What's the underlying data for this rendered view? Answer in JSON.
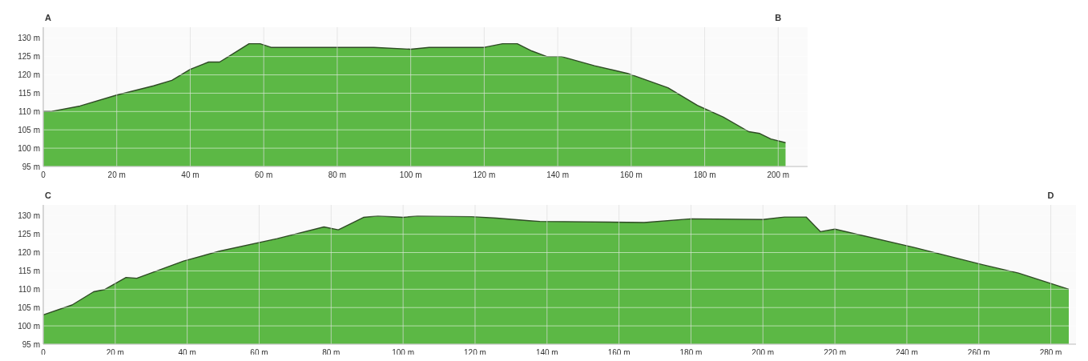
{
  "chart_data": [
    {
      "type": "area",
      "x": [
        0,
        2,
        10,
        20,
        30,
        35,
        40,
        45,
        48,
        52,
        56,
        59,
        62,
        70,
        80,
        90,
        100,
        105,
        120,
        125,
        129,
        133,
        137,
        141,
        150,
        159,
        170,
        178,
        185,
        192,
        195,
        198,
        202
      ],
      "series": [
        {
          "color": "#5cb845",
          "values": [
            110,
            110,
            111.5,
            114.5,
            117,
            118.5,
            121.5,
            123.5,
            123.5,
            126,
            128.5,
            128.5,
            127.5,
            127.5,
            127.5,
            127.5,
            127,
            127.5,
            127.5,
            128.5,
            128.5,
            126.5,
            125,
            125,
            122.5,
            120.4,
            116.5,
            111.7,
            108.5,
            104.5,
            104,
            102.5,
            101.5
          ]
        }
      ],
      "xlim": [
        0,
        208
      ],
      "ylim": [
        95,
        133
      ],
      "xticks": [
        0,
        {
          "value": 20,
          "label": "20 m"
        },
        {
          "value": 40,
          "label": "40 m"
        },
        {
          "value": 60,
          "label": "60 m"
        },
        {
          "value": 80,
          "label": "80 m"
        },
        {
          "value": 100,
          "label": "100 m"
        },
        {
          "value": 120,
          "label": "120 m"
        },
        {
          "value": 140,
          "label": "140 m"
        },
        {
          "value": 160,
          "label": "160 m"
        },
        {
          "value": 180,
          "label": "180 m"
        },
        {
          "value": 200,
          "label": "200 m"
        }
      ],
      "yticks": [
        {
          "value": 95,
          "label": "95 m"
        },
        {
          "value": 100,
          "label": "100 m"
        },
        {
          "value": 105,
          "label": "105 m"
        },
        {
          "value": 110,
          "label": "110 m"
        },
        {
          "value": 115,
          "label": "115 m"
        },
        {
          "value": 120,
          "label": "120 m"
        },
        {
          "value": 125,
          "label": "125 m"
        },
        {
          "value": 130,
          "label": "130 m"
        }
      ],
      "grid": true,
      "annotations": [
        "A",
        "B"
      ]
    },
    {
      "type": "area",
      "x": [
        0,
        8,
        14,
        17,
        23,
        26,
        39,
        49,
        65,
        78,
        82,
        89,
        93,
        100,
        104,
        119,
        126,
        135,
        138,
        167,
        180,
        200,
        206,
        212,
        216,
        220,
        242,
        261,
        271,
        285
      ],
      "series": [
        {
          "color": "#5cb845",
          "values": [
            103,
            105.7,
            109.3,
            109.9,
            113.2,
            113,
            117.7,
            120.4,
            123.8,
            127,
            126.2,
            129.6,
            130,
            129.6,
            130,
            129.8,
            129.4,
            128.7,
            128.5,
            128.2,
            129.2,
            129,
            129.7,
            129.7,
            125.7,
            126.4,
            121.4,
            116.7,
            114.4,
            110
          ]
        }
      ],
      "xlim": [
        0,
        287
      ],
      "ylim": [
        95,
        133
      ],
      "xticks": [
        0,
        {
          "value": 20,
          "label": "20 m"
        },
        {
          "value": 40,
          "label": "40 m"
        },
        {
          "value": 60,
          "label": "60 m"
        },
        {
          "value": 80,
          "label": "80 m"
        },
        {
          "value": 100,
          "label": "100 m"
        },
        {
          "value": 120,
          "label": "120 m"
        },
        {
          "value": 140,
          "label": "140 m"
        },
        {
          "value": 160,
          "label": "160 m"
        },
        {
          "value": 180,
          "label": "180 m"
        },
        {
          "value": 200,
          "label": "200 m"
        },
        {
          "value": 220,
          "label": "220 m"
        },
        {
          "value": 240,
          "label": "240 m"
        },
        {
          "value": 260,
          "label": "260 m"
        },
        {
          "value": 280,
          "label": "280 m"
        }
      ],
      "yticks": [
        {
          "value": 95,
          "label": "95 m"
        },
        {
          "value": 100,
          "label": "100 m"
        },
        {
          "value": 105,
          "label": "105 m"
        },
        {
          "value": 110,
          "label": "110 m"
        },
        {
          "value": 115,
          "label": "115 m"
        },
        {
          "value": 120,
          "label": "120 m"
        },
        {
          "value": 125,
          "label": "125 m"
        },
        {
          "value": 130,
          "label": "130 m"
        }
      ],
      "grid": true,
      "annotations": [
        "C",
        "D"
      ]
    }
  ]
}
